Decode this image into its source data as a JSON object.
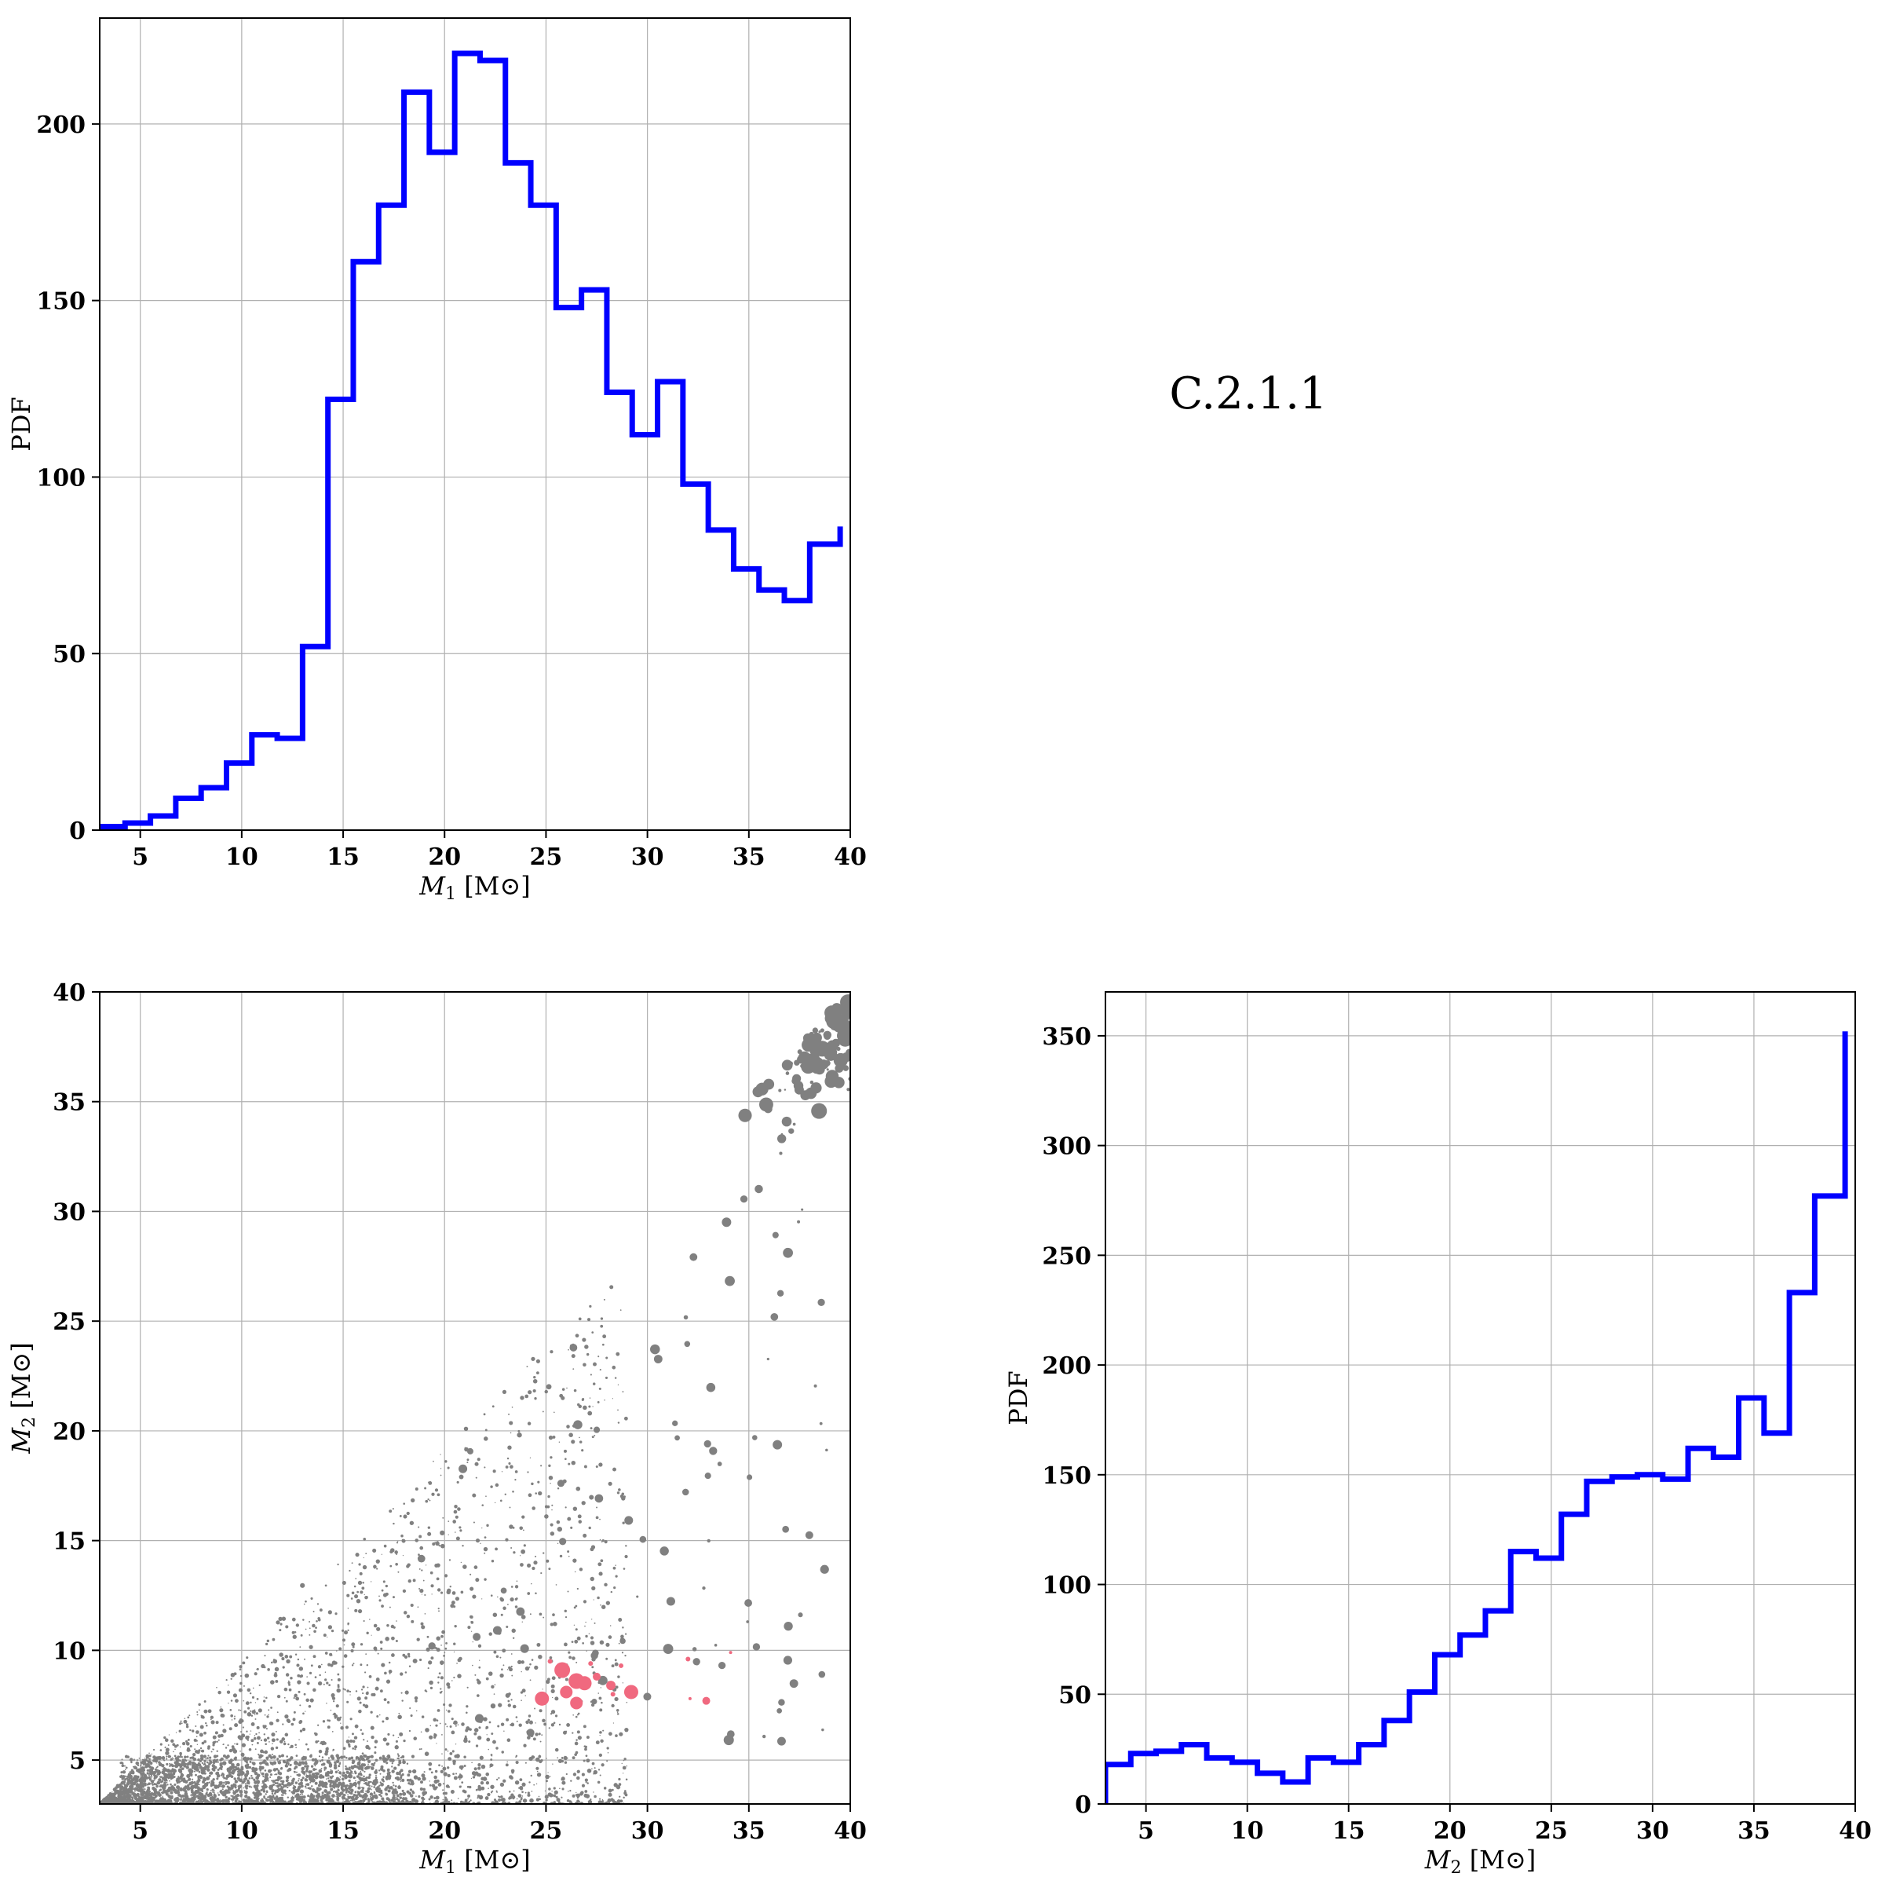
{
  "label": "C.2.1.1",
  "colors": {
    "hist": "#0000ff",
    "scatter": "#808080",
    "highlight": "#f0697f"
  },
  "chart_data": [
    {
      "type": "bar",
      "style": "step-histogram",
      "xlabel_sym": "M",
      "xlabel_sub": "1",
      "xlabel_unit": "[M⊙]",
      "ylabel": "PDF",
      "xlim": [
        3,
        40
      ],
      "ylim": [
        0,
        230
      ],
      "xticks": [
        5,
        10,
        15,
        20,
        25,
        30,
        35,
        40
      ],
      "yticks": [
        0,
        50,
        100,
        150,
        200
      ],
      "bin_edges": [
        3.0,
        4.25,
        5.5,
        6.75,
        8.0,
        9.25,
        10.5,
        11.75,
        13.0,
        14.25,
        15.5,
        16.75,
        18.0,
        19.25,
        20.5,
        21.75,
        23.0,
        24.25,
        25.5,
        26.75,
        28.0,
        29.25,
        30.5,
        31.75,
        33.0,
        34.25,
        35.5,
        36.75,
        38.0,
        39.5
      ],
      "values": [
        1,
        2,
        4,
        9,
        12,
        19,
        27,
        26,
        52,
        122,
        161,
        177,
        209,
        192,
        220,
        218,
        189,
        177,
        148,
        153,
        124,
        112,
        127,
        98,
        85,
        74,
        68,
        65,
        81,
        86
      ],
      "grid": true
    },
    {
      "type": "scatter",
      "xlabel_sym": "M",
      "xlabel_sub": "1",
      "xlabel_unit": "[M⊙]",
      "ylabel_sym": "M",
      "ylabel_sub": "2",
      "ylabel_unit": "[M⊙]",
      "xlim": [
        3,
        40
      ],
      "ylim": [
        3,
        40
      ],
      "xticks": [
        5,
        10,
        15,
        20,
        25,
        30,
        35,
        40
      ],
      "yticks": [
        5,
        10,
        15,
        20,
        25,
        30,
        35,
        40
      ],
      "grid": true,
      "highlight_points": [
        [
          24.8,
          7.8,
          9
        ],
        [
          25.8,
          9.1,
          10
        ],
        [
          26.0,
          8.1,
          8
        ],
        [
          26.5,
          8.6,
          10
        ],
        [
          26.9,
          8.5,
          9
        ],
        [
          26.5,
          7.6,
          8
        ],
        [
          27.5,
          8.8,
          5
        ],
        [
          28.2,
          8.4,
          6
        ],
        [
          29.2,
          8.1,
          9
        ],
        [
          25.2,
          9.5,
          3
        ],
        [
          27.2,
          9.4,
          3
        ],
        [
          28.7,
          9.3,
          3
        ],
        [
          32.0,
          9.6,
          3
        ],
        [
          32.9,
          7.7,
          5
        ],
        [
          32.1,
          7.8,
          2
        ],
        [
          28.3,
          8.0,
          3
        ],
        [
          34.1,
          9.9,
          2
        ]
      ]
    },
    {
      "type": "bar",
      "style": "step-histogram",
      "xlabel_sym": "M",
      "xlabel_sub": "2",
      "xlabel_unit": "[M⊙]",
      "ylabel": "PDF",
      "xlim": [
        3,
        40
      ],
      "ylim": [
        0,
        370
      ],
      "xticks": [
        5,
        10,
        15,
        20,
        25,
        30,
        35,
        40
      ],
      "yticks": [
        0,
        50,
        100,
        150,
        200,
        250,
        300,
        350
      ],
      "bin_edges": [
        3.0,
        4.25,
        5.5,
        6.75,
        8.0,
        9.25,
        10.5,
        11.75,
        13.0,
        14.25,
        15.5,
        16.75,
        18.0,
        19.25,
        20.5,
        21.75,
        23.0,
        24.25,
        25.5,
        26.75,
        28.0,
        29.25,
        30.5,
        31.75,
        33.0,
        34.25,
        35.5,
        36.75,
        38.0,
        39.5
      ],
      "values": [
        18,
        23,
        24,
        27,
        21,
        19,
        14,
        10,
        21,
        19,
        27,
        38,
        51,
        68,
        77,
        88,
        115,
        112,
        132,
        147,
        149,
        150,
        148,
        162,
        158,
        185,
        169,
        233,
        277,
        352
      ],
      "grid": true
    }
  ]
}
